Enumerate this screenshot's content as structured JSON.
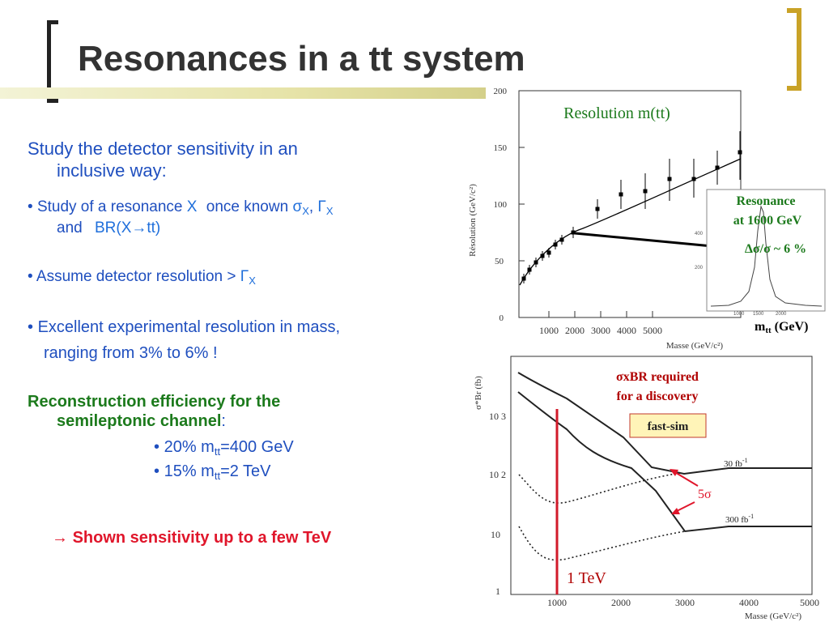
{
  "slide": {
    "title": "Resonances in a tt system"
  },
  "text": {
    "line1a": "Study the detector sensitivity in an",
    "line1b": "inclusive way:",
    "b1_bullet": "•",
    "b1_pre": "Study of a resonance",
    "b1_X": "X",
    "b1_mid": "once known",
    "b1_sigma": "σ",
    "b1_sigma_sub": "X",
    "b1_comma": ",",
    "b1_gamma": "Γ",
    "b1_gamma_sub": "X",
    "b1_and": "and",
    "b1_br": "BR(X→tt)",
    "b2_bullet": "•",
    "b2_text": "Assume detector resolution >",
    "b2_gamma": "Γ",
    "b2_gamma_sub": "X",
    "b3_bullet": "•",
    "b3_line1": "Excellent experimental resolution in mass,",
    "b3_line2": "ranging from 3% to 6% !",
    "reco_line1": "Reconstruction efficiency for the",
    "reco_line2": "semileptonic channel",
    "reco_colon": ":",
    "e1_bullet": "•",
    "e1_pre": "20% m",
    "e1_sub": "tt",
    "e1_post": "=400 GeV",
    "e2_bullet": "•",
    "e2_pre": "15% m",
    "e2_sub": "tt",
    "e2_post": "=2 TeV",
    "sens_arrow": "→",
    "sens_text": "Shown sensitivity up to a few TeV"
  },
  "top_plot": {
    "title": "Resolution m(tt)",
    "ylabel": "Résolution (GeV/c²)",
    "xlabel": "Masse (GeV/c²)",
    "yticks": [
      "0",
      "50",
      "100",
      "150",
      "200"
    ],
    "xticks": [
      "1000",
      "2000",
      "3000",
      "4000",
      "5000"
    ],
    "inset_label_l1": "Resonance",
    "inset_label_l2": "at 1600 GeV",
    "inset_ratio": "Δσ/σ ~ 6 %",
    "inset_xticks": [
      "1000",
      "1500",
      "2000"
    ],
    "inset_yticks": [
      "400",
      "200"
    ],
    "inset_xlabel_m": "m",
    "inset_xlabel_sub": "tt",
    "inset_xlabel_unit": "(GeV)"
  },
  "bottom_plot": {
    "ylabel": "σ*Br (fb)",
    "xlabel": "Masse (GeV/c²)",
    "yticks": [
      "1",
      "10",
      "10 2",
      "10 3"
    ],
    "xticks": [
      "1000",
      "2000",
      "3000",
      "4000",
      "5000"
    ],
    "annot_l1": "σxBR required",
    "annot_l2": "for a discovery",
    "fastsim": "fast-sim",
    "label_30": "30 fb",
    "label_300": "300 fb",
    "sup": "-1",
    "five_sigma": "5σ",
    "one_tev": "1 TeV"
  },
  "colors": {
    "accent_blue": "#1f4fbf",
    "green": "#1c7a1c",
    "red": "#e0162b",
    "dark_red": "#b00000",
    "gold": "#c9a227"
  }
}
